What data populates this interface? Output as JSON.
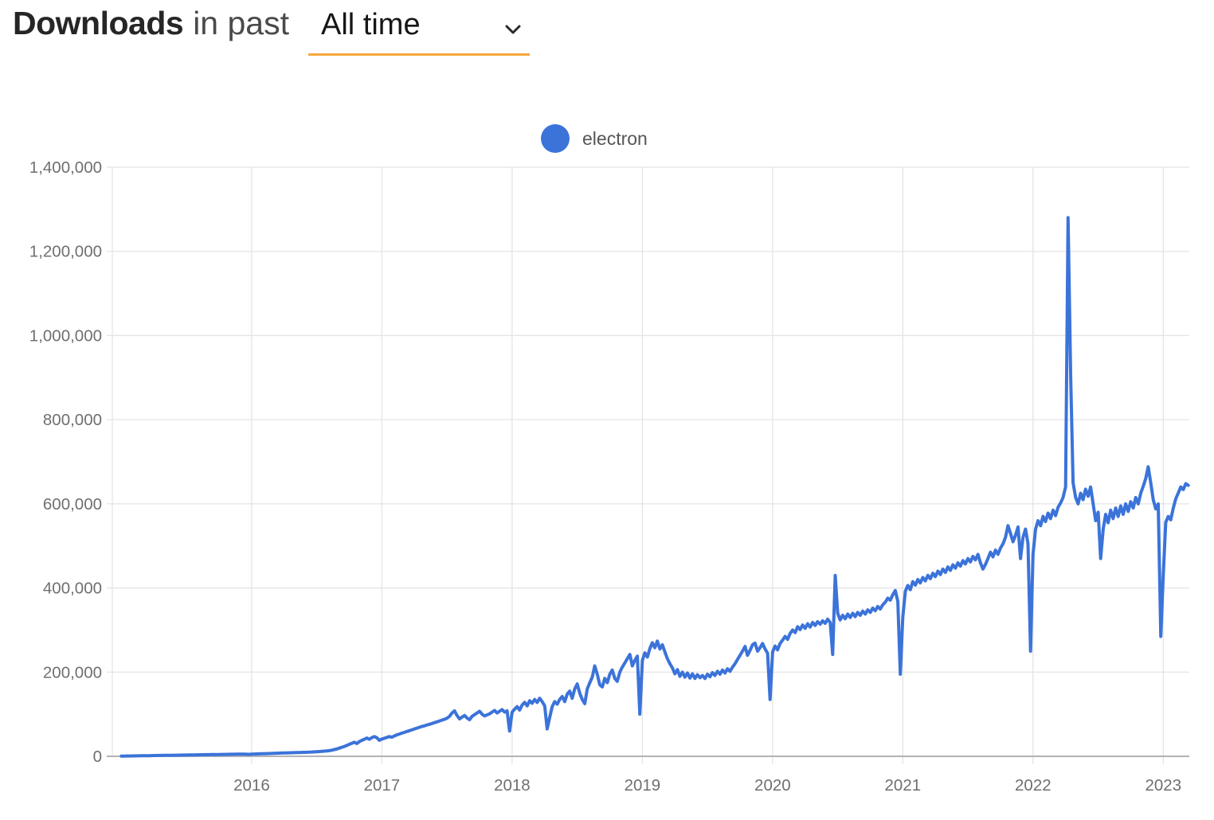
{
  "header": {
    "title_bold": "Downloads",
    "title_connector": "in past",
    "dropdown_value": "All time"
  },
  "legend": [
    {
      "label": "electron",
      "color": "#3b73d9"
    }
  ],
  "colors": {
    "accent_underline": "#f5a63b",
    "series_blue": "#3b73d9",
    "gridline": "#e4e4e4",
    "axis_line": "#b3b3b3",
    "tick_text": "#6f6f6f"
  },
  "chart_data": {
    "type": "line",
    "title": "Downloads in past All time",
    "xlabel": "",
    "ylabel": "",
    "x_unit": "year",
    "frequency": "weekly",
    "grid": true,
    "legend_position": "top-center",
    "xlim": [
      2014.93,
      2023.2
    ],
    "ylim": [
      0,
      1400000
    ],
    "x_ticks": [
      {
        "value": 2016,
        "label": "2016"
      },
      {
        "value": 2017,
        "label": "2017"
      },
      {
        "value": 2018,
        "label": "2018"
      },
      {
        "value": 2019,
        "label": "2019"
      },
      {
        "value": 2020,
        "label": "2020"
      },
      {
        "value": 2021,
        "label": "2021"
      },
      {
        "value": 2022,
        "label": "2022"
      },
      {
        "value": 2023,
        "label": "2023"
      }
    ],
    "y_ticks": [
      {
        "value": 0,
        "label": "0"
      },
      {
        "value": 200000,
        "label": "200,000"
      },
      {
        "value": 400000,
        "label": "400,000"
      },
      {
        "value": 600000,
        "label": "600,000"
      },
      {
        "value": 800000,
        "label": "800,000"
      },
      {
        "value": 1000000,
        "label": "1,000,000"
      },
      {
        "value": 1200000,
        "label": "1,200,000"
      },
      {
        "value": 1400000,
        "label": "1,400,000"
      }
    ],
    "series": [
      {
        "name": "electron",
        "color": "#3b73d9",
        "start_x": 2015.0,
        "x_step": 0.01923076923,
        "values": [
          500,
          600,
          700,
          800,
          900,
          1000,
          1100,
          1200,
          1300,
          1400,
          1500,
          1600,
          1700,
          1800,
          1900,
          2000,
          2100,
          2200,
          2300,
          2400,
          2500,
          2600,
          2700,
          2800,
          2900,
          3000,
          3100,
          3200,
          3300,
          3400,
          3500,
          3600,
          3700,
          3800,
          3900,
          4000,
          4100,
          4200,
          4300,
          4400,
          4500,
          4600,
          4700,
          4800,
          4900,
          5000,
          5100,
          5200,
          5300,
          5100,
          5000,
          4800,
          5200,
          5500,
          5700,
          5900,
          6100,
          6300,
          6500,
          6700,
          6900,
          7100,
          7300,
          7500,
          7700,
          7900,
          8100,
          8300,
          8500,
          8700,
          8900,
          9100,
          9300,
          9500,
          9700,
          10000,
          10300,
          10600,
          11000,
          11400,
          11800,
          12300,
          12800,
          13500,
          14500,
          16000,
          17500,
          19500,
          21500,
          23500,
          26000,
          28500,
          31000,
          33500,
          30500,
          35000,
          38000,
          40500,
          43500,
          40500,
          44500,
          47000,
          44000,
          38000,
          41000,
          43000,
          45000,
          47000,
          45500,
          48500,
          51000,
          53000,
          55000,
          57000,
          59000,
          61000,
          63000,
          65000,
          67000,
          69000,
          71000,
          72500,
          74500,
          76000,
          78000,
          80000,
          82000,
          84000,
          86000,
          88000,
          90500,
          95000,
          103000,
          108000,
          97000,
          89000,
          93000,
          97000,
          91000,
          87000,
          95000,
          99000,
          103000,
          107000,
          100000,
          96000,
          98500,
          101000,
          105000,
          109000,
          103000,
          107000,
          111000,
          105000,
          108000,
          60000,
          105000,
          112000,
          118000,
          110000,
          122000,
          128000,
          120000,
          132000,
          126000,
          135000,
          128000,
          138000,
          130000,
          120000,
          65000,
          92000,
          118000,
          130000,
          124000,
          135000,
          142000,
          130000,
          148000,
          155000,
          138000,
          160000,
          172000,
          150000,
          135000,
          125000,
          160000,
          175000,
          188000,
          215000,
          195000,
          170000,
          165000,
          185000,
          175000,
          195000,
          205000,
          185000,
          178000,
          200000,
          212000,
          222000,
          232000,
          242000,
          215000,
          228000,
          238000,
          100000,
          228000,
          246000,
          236000,
          256000,
          270000,
          258000,
          274000,
          255000,
          265000,
          248000,
          232000,
          220000,
          210000,
          196000,
          206000,
          190000,
          200000,
          188000,
          198000,
          186000,
          196000,
          185000,
          194000,
          187000,
          192000,
          185000,
          195000,
          189000,
          199000,
          192000,
          202000,
          195000,
          205000,
          198000,
          208000,
          202000,
          212000,
          220000,
          230000,
          240000,
          250000,
          261000,
          240000,
          252000,
          265000,
          269000,
          250000,
          258000,
          268000,
          255000,
          245000,
          135000,
          248000,
          262000,
          253000,
          268000,
          276000,
          285000,
          278000,
          292000,
          300000,
          294000,
          308000,
          301000,
          312000,
          304000,
          315000,
          307000,
          318000,
          311000,
          320000,
          314000,
          322000,
          316000,
          326000,
          318000,
          242000,
          430000,
          340000,
          324000,
          335000,
          327000,
          338000,
          330000,
          340000,
          332000,
          342000,
          335000,
          345000,
          338000,
          348000,
          342000,
          352000,
          346000,
          356000,
          350000,
          360000,
          366000,
          376000,
          371000,
          384000,
          394000,
          368000,
          195000,
          330000,
          392000,
          406000,
          396000,
          415000,
          407000,
          420000,
          412000,
          425000,
          417000,
          430000,
          422000,
          435000,
          427000,
          440000,
          432000,
          445000,
          437000,
          450000,
          442000,
          455000,
          447000,
          460000,
          452000,
          465000,
          457000,
          470000,
          462000,
          475000,
          467000,
          480000,
          460000,
          445000,
          456000,
          470000,
          485000,
          474000,
          490000,
          480000,
          495000,
          505000,
          520000,
          548000,
          530000,
          510000,
          525000,
          545000,
          470000,
          520000,
          540000,
          505000,
          250000,
          480000,
          540000,
          560000,
          548000,
          570000,
          558000,
          578000,
          565000,
          585000,
          572000,
          592000,
          602000,
          615000,
          640000,
          1280000,
          910000,
          650000,
          615000,
          600000,
          625000,
          610000,
          635000,
          618000,
          640000,
          600000,
          560000,
          580000,
          470000,
          540000,
          575000,
          555000,
          585000,
          565000,
          590000,
          570000,
          595000,
          575000,
          600000,
          582000,
          605000,
          590000,
          615000,
          600000,
          625000,
          642000,
          660000,
          688000,
          650000,
          610000,
          588000,
          600000,
          285000,
          430000,
          556000,
          570000,
          562000,
          590000,
          612000,
          626000,
          640000,
          634000,
          648000,
          644000
        ]
      }
    ]
  }
}
